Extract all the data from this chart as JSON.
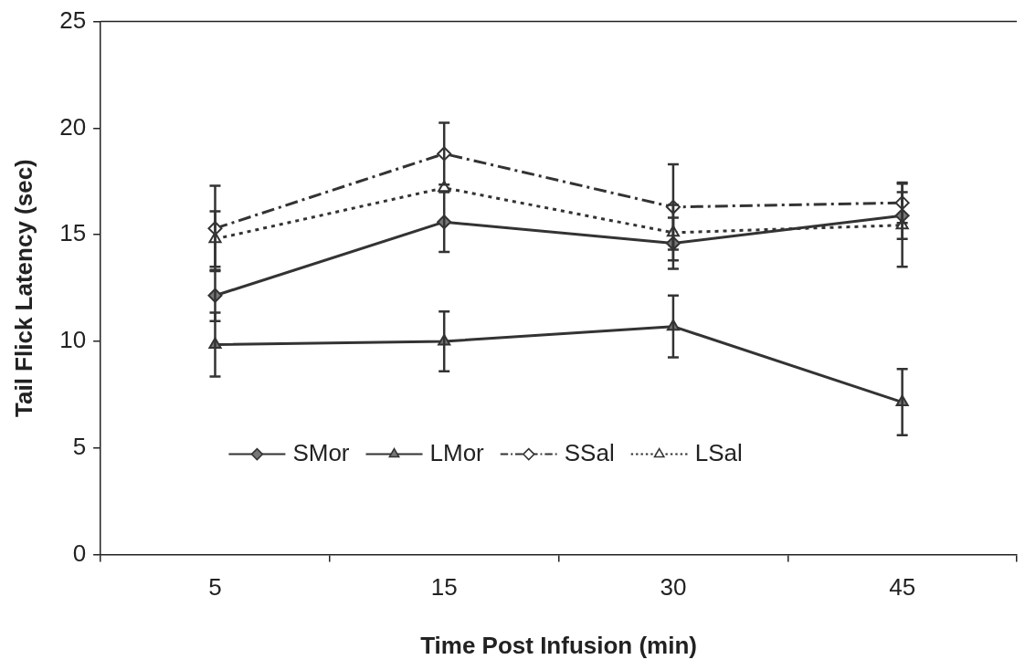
{
  "chart_data": {
    "type": "line",
    "xlabel": "Time Post Infusion (min)",
    "ylabel": "Tail Flick Latency (sec)",
    "categories": [
      "5",
      "15",
      "30",
      "45"
    ],
    "series": [
      {
        "name": "SMor",
        "color": "#333333",
        "marker": "diamond",
        "line_style": "solid",
        "values": [
          12.15,
          15.6,
          14.6,
          15.9
        ],
        "errors": [
          1.2,
          1.4,
          1.2,
          1.1
        ]
      },
      {
        "name": "LMor",
        "color": "#333333",
        "marker": "triangle",
        "line_style": "solid",
        "values": [
          9.85,
          10.0,
          10.7,
          7.15
        ],
        "errors": [
          1.5,
          1.4,
          1.45,
          1.55
        ]
      },
      {
        "name": "SSal",
        "color": "#333333",
        "marker": "diamond",
        "line_style": "dashed",
        "values": [
          15.3,
          18.8,
          16.3,
          16.5
        ],
        "errors": [
          2.0,
          1.45,
          2.0,
          0.95
        ]
      },
      {
        "name": "LSal",
        "color": "#333333",
        "marker": "triangle",
        "line_style": "dotted",
        "values": [
          14.8,
          17.2,
          15.1,
          15.45
        ],
        "errors": [
          1.3,
          null,
          1.3,
          1.95
        ]
      }
    ],
    "ylim": [
      0,
      25
    ],
    "yticks": [
      0,
      5,
      10,
      15,
      20,
      25
    ],
    "grid": false,
    "legend": "bottom"
  }
}
